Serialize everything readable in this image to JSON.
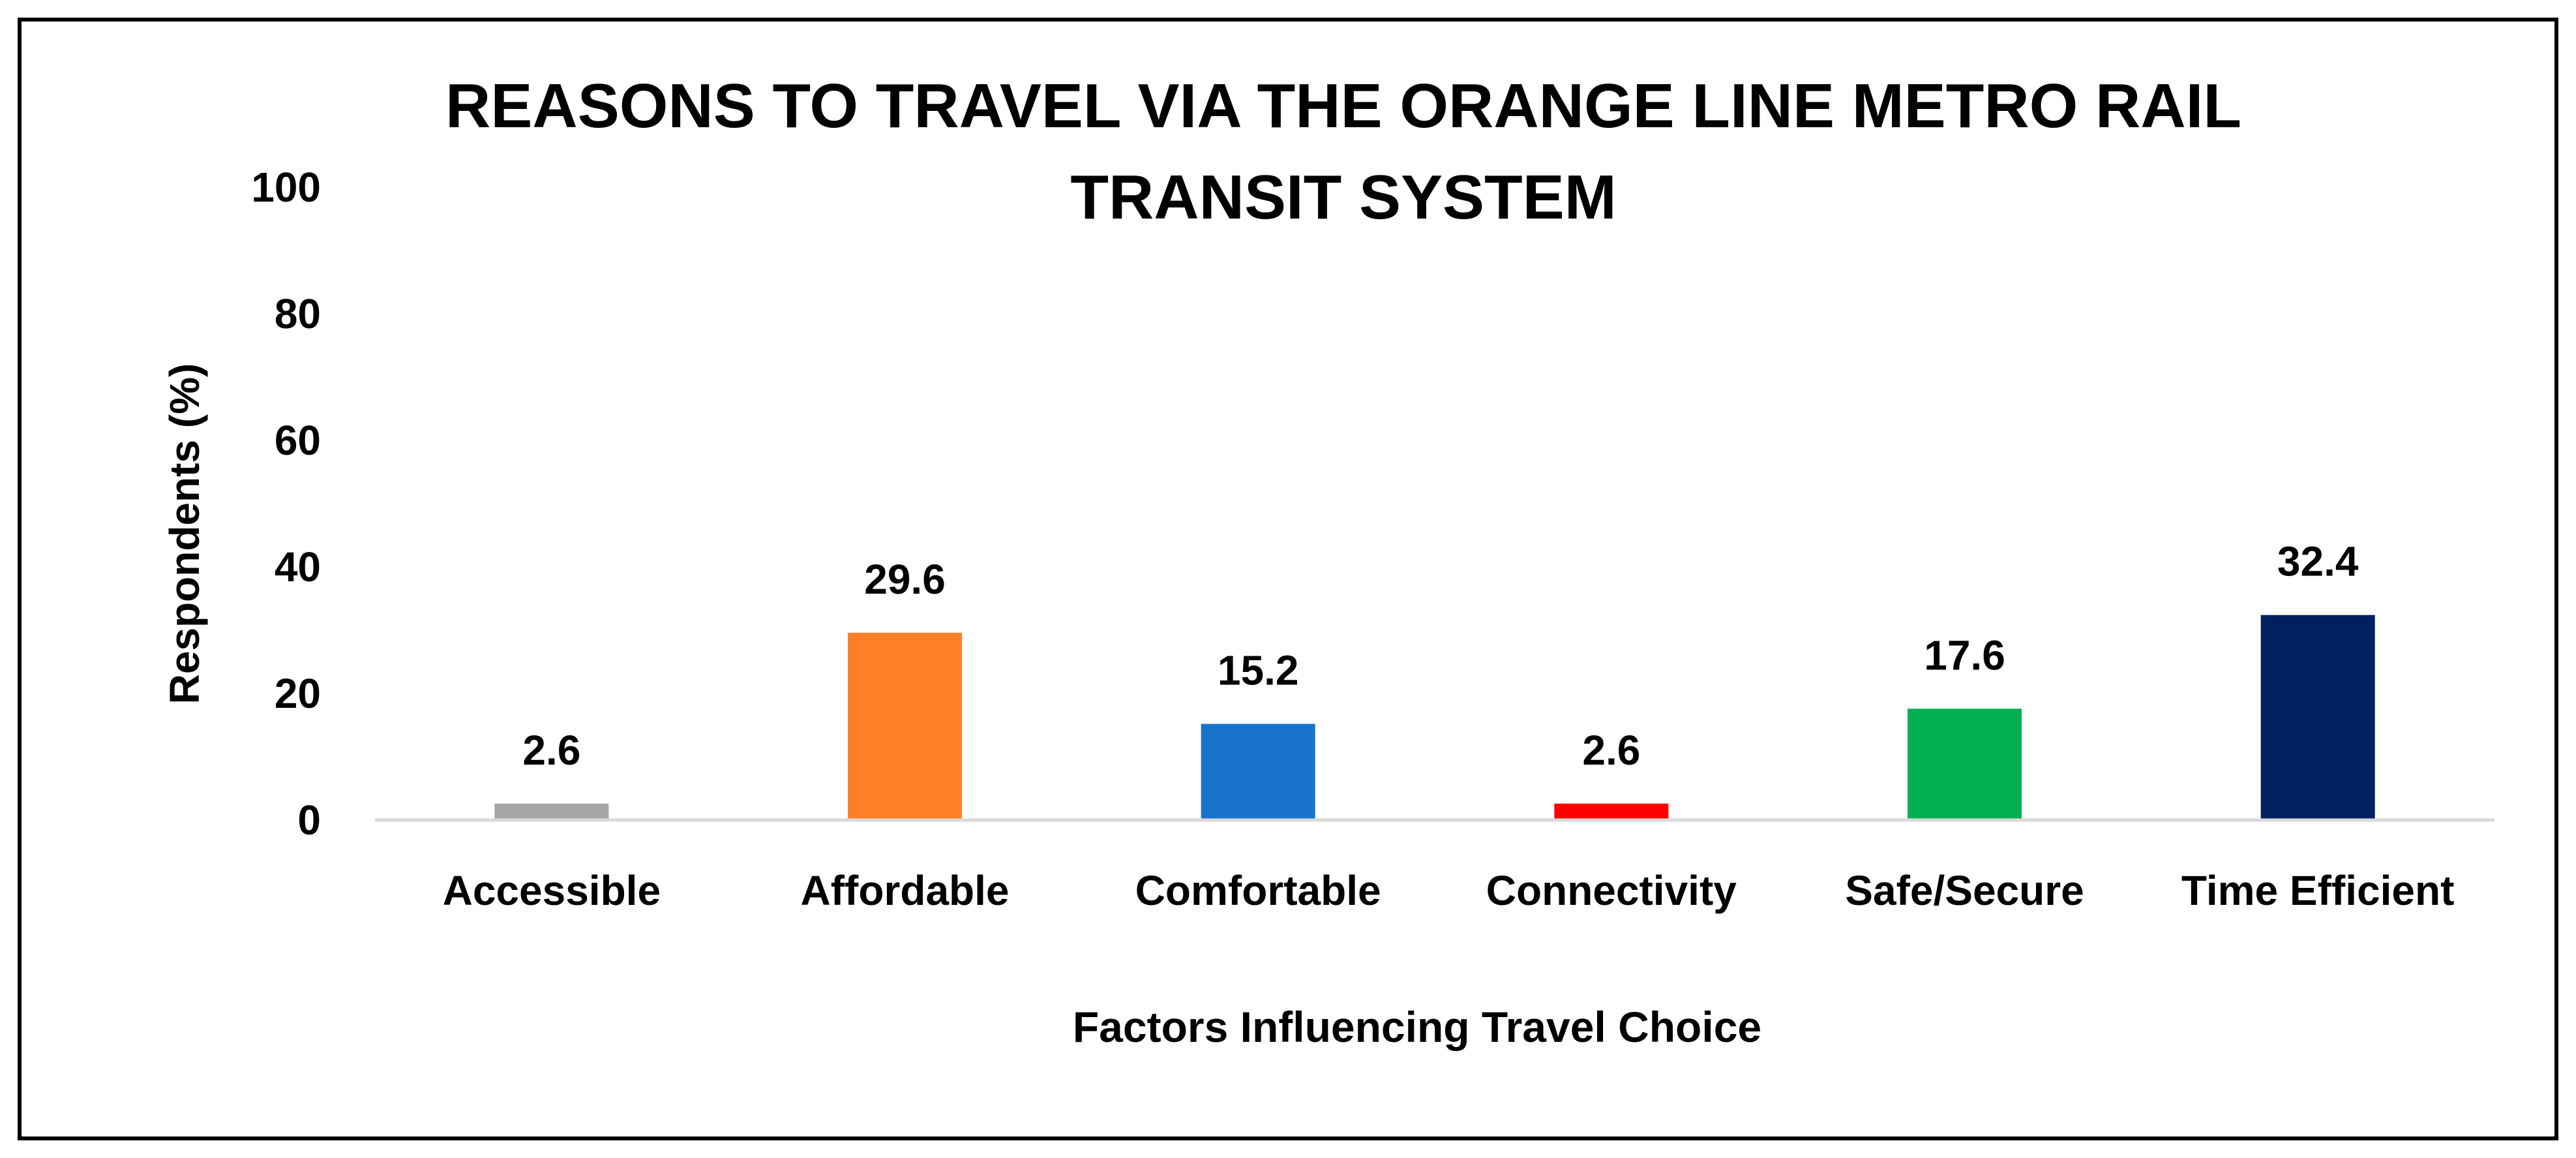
{
  "chart_data": {
    "type": "bar",
    "title_lines": [
      "REASONS TO TRAVEL VIA THE ORANGE LINE METRO RAIL",
      "TRANSIT SYSTEM"
    ],
    "xlabel": "Factors Influencing Travel Choice",
    "ylabel": "Respondents (%)",
    "ylim": [
      0,
      100
    ],
    "yticks": [
      0,
      20,
      40,
      60,
      80,
      100
    ],
    "grid": false,
    "legend": "none",
    "categories": [
      "Accessible",
      "Affordable",
      "Comfortable",
      "Connectivity",
      "Safe/Secure",
      "Time Efficient"
    ],
    "values": [
      2.6,
      29.6,
      15.2,
      2.6,
      17.6,
      32.4
    ],
    "data_labels": [
      "2.6",
      "29.6",
      "15.2",
      "2.6",
      "17.6",
      "32.4"
    ],
    "colors": [
      "#A5A5A5",
      "#FF7F27",
      "#1874CD",
      "#FF0000",
      "#00B050",
      "#002060"
    ]
  }
}
